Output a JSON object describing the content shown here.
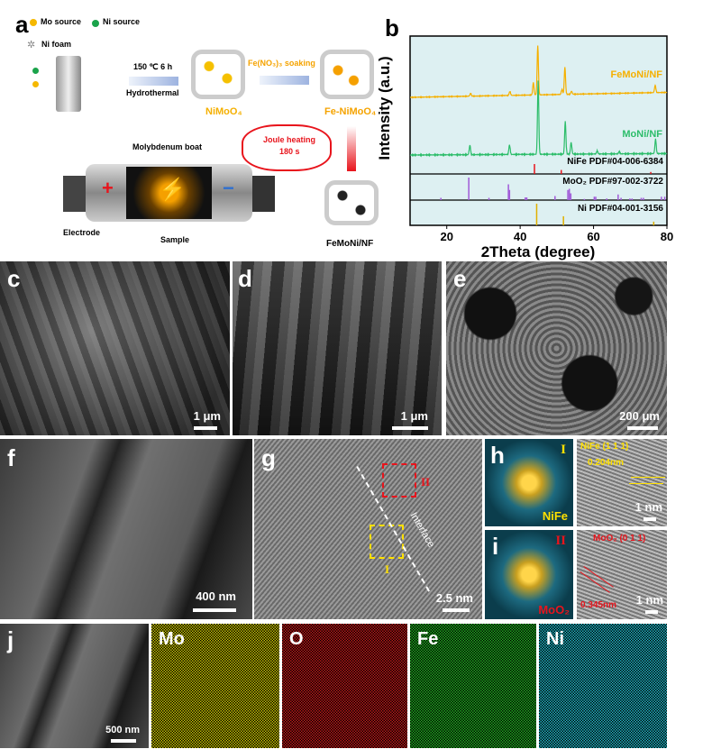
{
  "panels": {
    "a": "a",
    "b": "b",
    "c": "c",
    "d": "d",
    "e": "e",
    "f": "f",
    "g": "g",
    "h": "h",
    "i": "i",
    "j": "j"
  },
  "schematic": {
    "legend_mo": "Mo source",
    "legend_ni": "Ni source",
    "legend_foam": "Ni foam",
    "condition": "150 ℃   6 h",
    "hydrothermal": "Hydrothermal",
    "soaking": "Fe(NO₃)₃ soaking",
    "nimoo4": "NiMoO₄",
    "fe_nimoo4": "Fe-NiMoO₄",
    "joule": "Joule heating",
    "joule_time": "180 s",
    "boat": "Molybdenum boat",
    "electrode": "Electrode",
    "sample": "Sample",
    "product": "FeMoNi/NF",
    "plus": "+",
    "minus": "−",
    "colors": {
      "mo": "#f5b800",
      "ni": "#1aa34a",
      "arrow": "#9db3e0",
      "red": "#e8141c",
      "orange": "#f5a300"
    }
  },
  "chart_data": {
    "type": "line",
    "xlabel": "2Theta (degree)",
    "ylabel": "Intensity (a.u.)",
    "xlim": [
      10,
      80
    ],
    "xticks": [
      20,
      40,
      60,
      80
    ],
    "background": "#ddf0f2",
    "series": [
      {
        "name": "FeMoNi/NF",
        "color": "#f5b000",
        "baseline": [
          0.0,
          0.1
        ],
        "peaks": [
          [
            26.5,
            0.06
          ],
          [
            37.2,
            0.08
          ],
          [
            43.6,
            0.25
          ],
          [
            44.8,
            1.0
          ],
          [
            51.4,
            0.1
          ],
          [
            52.2,
            0.55
          ],
          [
            54,
            0.06
          ],
          [
            76.8,
            0.15
          ]
        ]
      },
      {
        "name": "MoNi/NF",
        "color": "#2cbd6a",
        "baseline": [
          0.0,
          0.02
        ],
        "peaks": [
          [
            26.3,
            0.13
          ],
          [
            37.1,
            0.13
          ],
          [
            44.9,
            1.0
          ],
          [
            52.3,
            0.45
          ],
          [
            53.9,
            0.16
          ],
          [
            61,
            0.04
          ],
          [
            67,
            0.03
          ],
          [
            76.9,
            0.2
          ]
        ]
      }
    ],
    "references": [
      {
        "name": "NiFe PDF#04-006-6384",
        "color": "#e8141c",
        "lines": [
          [
            43.9,
            1.0
          ],
          [
            51.2,
            0.4
          ],
          [
            75.6,
            0.2
          ]
        ]
      },
      {
        "name": "MoO₂ PDF#97-002-3722",
        "color": "#a05ad8",
        "lines": [
          [
            18.4,
            0.1
          ],
          [
            26,
            1.0
          ],
          [
            31.5,
            0.1
          ],
          [
            36.8,
            0.7
          ],
          [
            37.1,
            0.45
          ],
          [
            41.4,
            0.12
          ],
          [
            41.8,
            0.12
          ],
          [
            49.5,
            0.18
          ],
          [
            53,
            0.45
          ],
          [
            53.4,
            0.5
          ],
          [
            53.8,
            0.3
          ],
          [
            57.5,
            0.05
          ],
          [
            60.2,
            0.15
          ],
          [
            60.6,
            0.15
          ],
          [
            63.6,
            0.07
          ],
          [
            66.7,
            0.25
          ],
          [
            67.5,
            0.1
          ],
          [
            69.9,
            0.07
          ],
          [
            70.5,
            0.07
          ],
          [
            73,
            0.1
          ],
          [
            73.6,
            0.1
          ],
          [
            78.5,
            0.15
          ],
          [
            79.4,
            0.15
          ]
        ]
      },
      {
        "name": "Ni PDF#04-001-3156",
        "color": "#e0b000",
        "lines": [
          [
            44.5,
            1.0
          ],
          [
            51.8,
            0.42
          ],
          [
            76.4,
            0.17
          ]
        ]
      }
    ]
  },
  "micrographs": {
    "c_scale": "1 μm",
    "d_scale": "1 μm",
    "e_scale": "200 μm",
    "f_scale": "400 nm",
    "g_scale": "2.5 nm",
    "g_interface": "Interface",
    "g_region1": "I",
    "g_region2": "II",
    "h_region": "I",
    "h_label": "NiFe",
    "h_plane": "NiFe (1 1 1)",
    "h_d": "0.204nm",
    "h_scale": "1 nm",
    "i_region": "II",
    "i_label": "MoO₂",
    "i_plane": "MoO₂ (0 1 1)",
    "i_d": "0.345nm",
    "i_scale": "1 nm",
    "j_scale": "500 nm",
    "maps": [
      {
        "el": "Mo",
        "color": "#c9c400"
      },
      {
        "el": "O",
        "color": "#c01818"
      },
      {
        "el": "Fe",
        "color": "#20b020"
      },
      {
        "el": "Ni",
        "color": "#20b8c8"
      }
    ]
  }
}
